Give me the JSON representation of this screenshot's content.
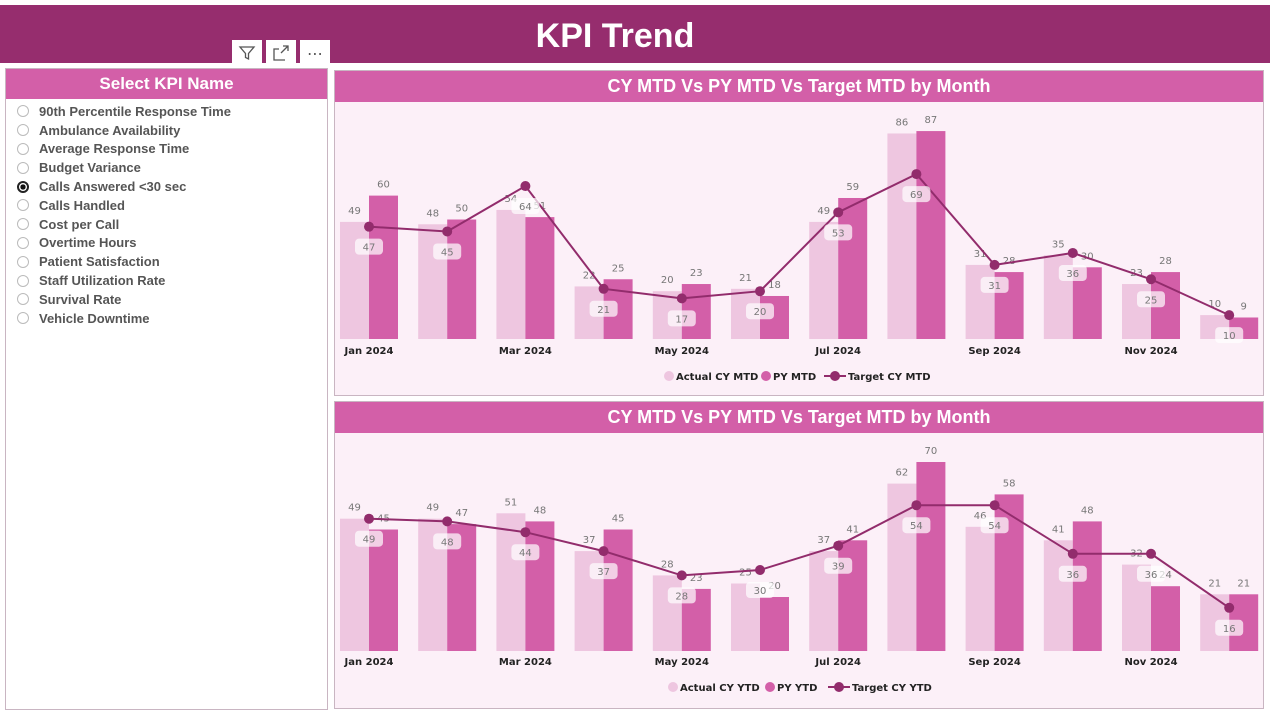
{
  "header": {
    "title": "KPI Trend"
  },
  "visual_icons": [
    "filter-icon",
    "focus-mode-icon",
    "more-options-icon"
  ],
  "slicer": {
    "title": "Select KPI Name",
    "selected": "Calls Answered <30 sec",
    "items": [
      "90th Percentile Response Time",
      "Ambulance Availability",
      "Average Response Time",
      "Budget Variance",
      "Calls Answered <30 sec",
      "Calls Handled",
      "Cost per Call",
      "Overtime Hours",
      "Patient Satisfaction",
      "Staff Utilization Rate",
      "Survival Rate",
      "Vehicle Downtime"
    ]
  },
  "colors": {
    "header": "#962D6E",
    "title_bar": "#D35FA8",
    "actual": "#EEC6E0",
    "py": "#D35FA8",
    "target": "#922C6C",
    "background": "#FCF0F8"
  },
  "chart_data": [
    {
      "type": "bar",
      "title": "CY MTD Vs PY MTD Vs Target MTD by Month",
      "categories": [
        "Jan 2024",
        "Feb 2024",
        "Mar 2024",
        "Apr 2024",
        "May 2024",
        "Jun 2024",
        "Jul 2024",
        "Aug 2024",
        "Sep 2024",
        "Oct 2024",
        "Nov 2024",
        "Dec 2024"
      ],
      "tick_labels": [
        "Jan 2024",
        "",
        "Mar 2024",
        "",
        "May 2024",
        "",
        "Jul 2024",
        "",
        "Sep 2024",
        "",
        "Nov 2024",
        ""
      ],
      "series": [
        {
          "name": "Actual CY MTD",
          "type": "bar",
          "values": [
            49,
            48,
            54,
            22,
            20,
            21,
            49,
            86,
            31,
            35,
            23,
            10
          ]
        },
        {
          "name": "PY MTD",
          "type": "bar",
          "values": [
            60,
            50,
            51,
            25,
            23,
            18,
            59,
            87,
            28,
            30,
            28,
            9
          ]
        },
        {
          "name": "Target CY MTD",
          "type": "line",
          "values": [
            47,
            45,
            64,
            21,
            17,
            20,
            53,
            69,
            31,
            36,
            25,
            10
          ]
        }
      ],
      "legend": "bottom-center",
      "grid": false
    },
    {
      "type": "bar",
      "title": "CY MTD Vs PY MTD Vs Target MTD by Month",
      "categories": [
        "Jan 2024",
        "Feb 2024",
        "Mar 2024",
        "Apr 2024",
        "May 2024",
        "Jun 2024",
        "Jul 2024",
        "Aug 2024",
        "Sep 2024",
        "Oct 2024",
        "Nov 2024",
        "Dec 2024"
      ],
      "tick_labels": [
        "Jan 2024",
        "",
        "Mar 2024",
        "",
        "May 2024",
        "",
        "Jul 2024",
        "",
        "Sep 2024",
        "",
        "Nov 2024",
        ""
      ],
      "series": [
        {
          "name": "Actual CY YTD",
          "type": "bar",
          "values": [
            49,
            49,
            51,
            37,
            28,
            25,
            37,
            62,
            46,
            41,
            32,
            21
          ]
        },
        {
          "name": "PY YTD",
          "type": "bar",
          "values": [
            45,
            47,
            48,
            45,
            23,
            20,
            41,
            70,
            58,
            48,
            24,
            21
          ]
        },
        {
          "name": "Target CY YTD",
          "type": "line",
          "values": [
            49,
            48,
            44,
            37,
            28,
            30,
            39,
            54,
            54,
            36,
            36,
            16
          ]
        }
      ],
      "legend": "bottom-center",
      "grid": false
    }
  ]
}
